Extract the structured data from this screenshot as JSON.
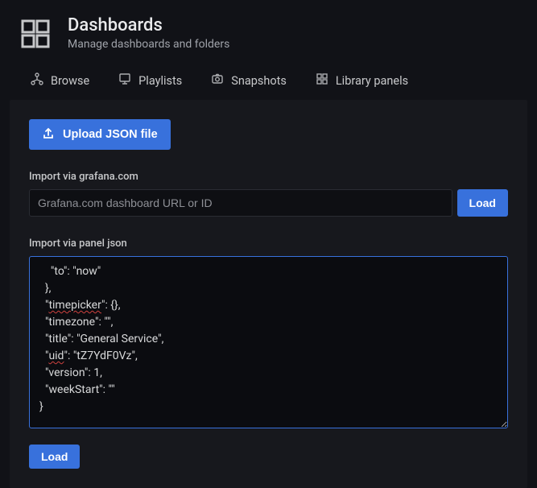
{
  "header": {
    "title": "Dashboards",
    "subtitle": "Manage dashboards and folders"
  },
  "tabs": {
    "browse": "Browse",
    "playlists": "Playlists",
    "snapshots": "Snapshots",
    "library": "Library panels"
  },
  "upload": {
    "label": "Upload JSON file"
  },
  "grafana": {
    "label": "Import via grafana.com",
    "placeholder": "Grafana.com dashboard URL or ID",
    "button": "Load"
  },
  "panel_json": {
    "label": "Import via panel json",
    "button": "Load",
    "content_lines": [
      "    \"to\": \"now\"",
      "  },",
      "  \"timepicker\": {},",
      "  \"timezone\": \"\",",
      "  \"title\": \"General Service\",",
      "  \"uid\": \"tZ7YdF0Vz\",",
      "  \"version\": 1,",
      "  \"weekStart\": \"\"",
      "}"
    ],
    "squiggle_words": [
      "timepicker",
      "uid"
    ]
  },
  "colors": {
    "bg": "#111217",
    "panel_bg": "#17181d",
    "input_bg": "#0e0f13",
    "textarea_bg": "#0b0c10",
    "primary": "#3871dc",
    "text": "#d8d9da",
    "muted": "#9fa2a9",
    "squiggle": "#d0423f"
  }
}
